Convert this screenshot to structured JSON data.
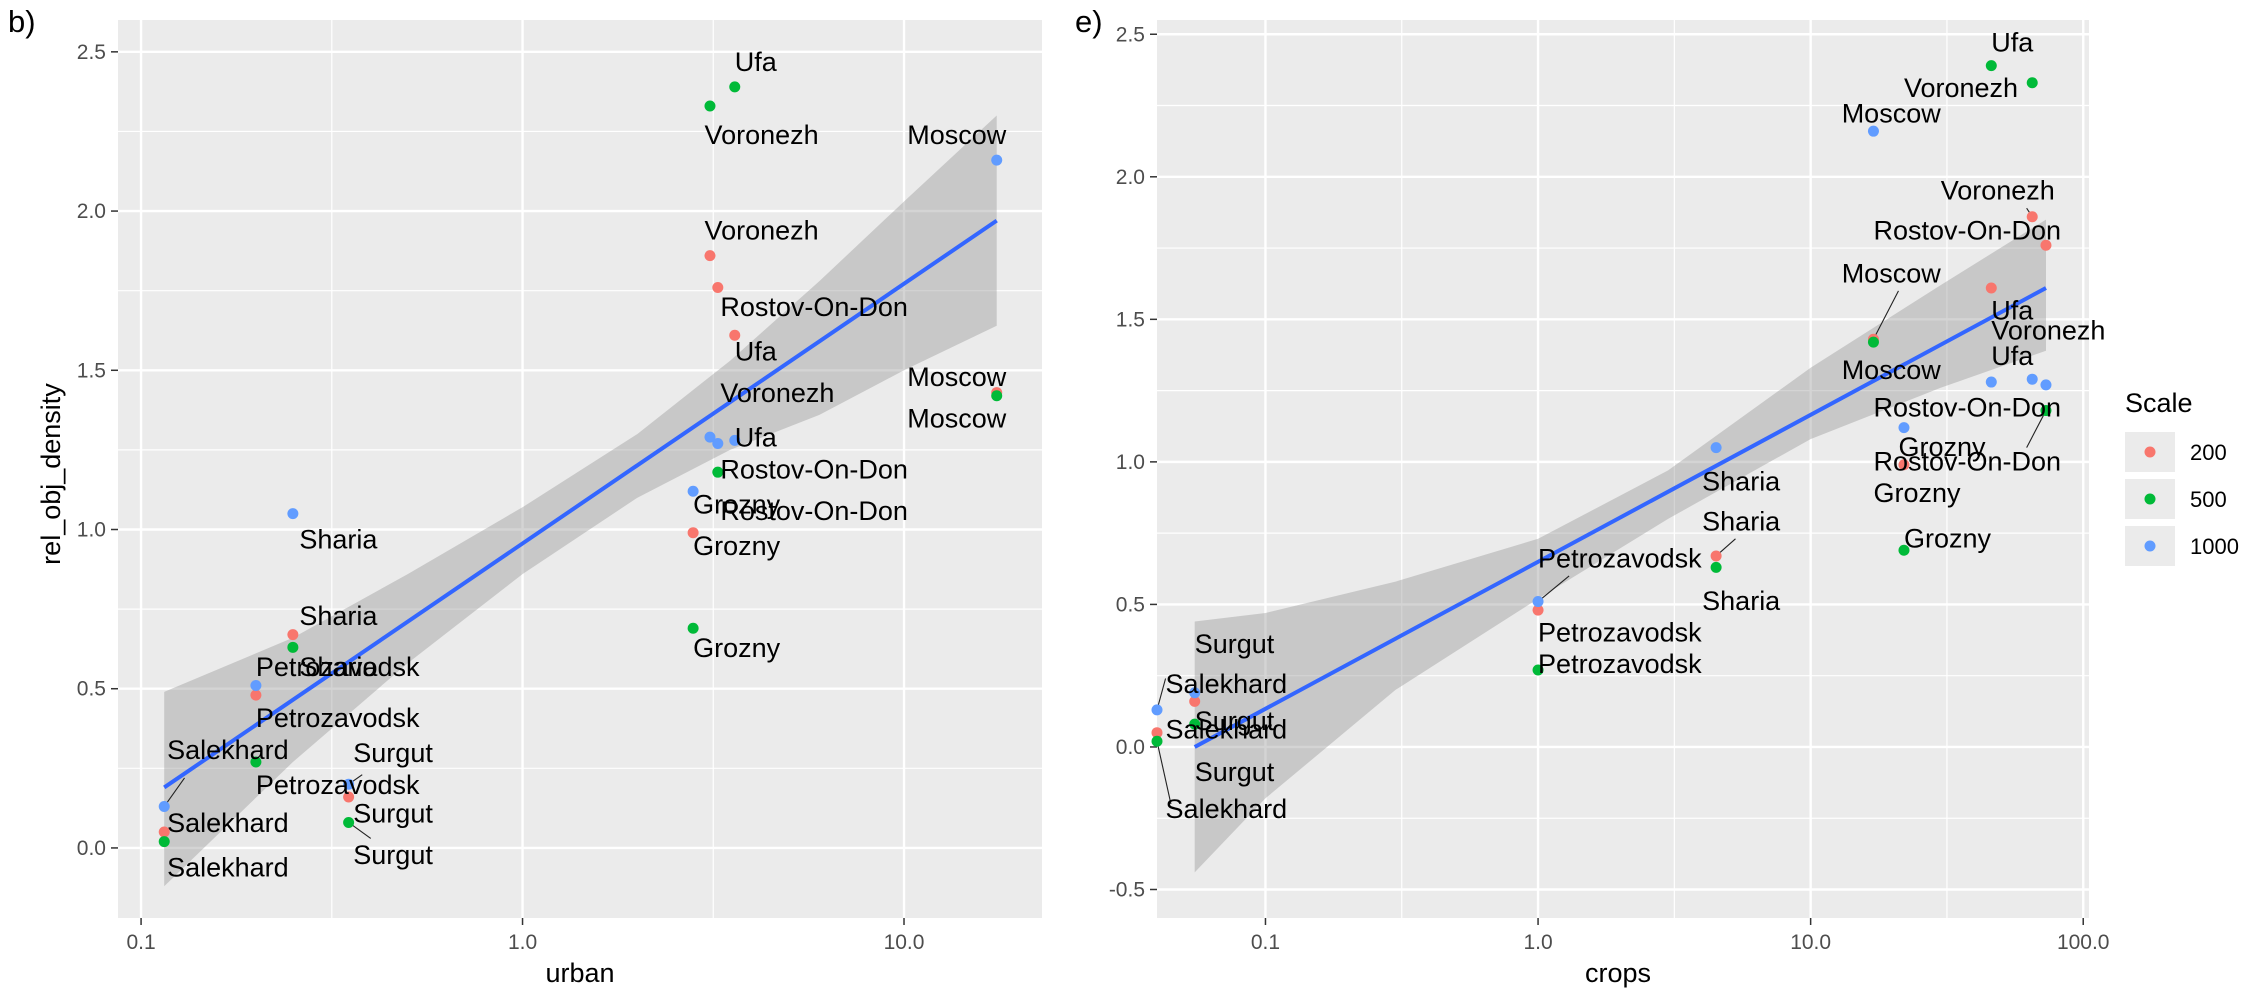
{
  "chart_data": [
    {
      "type": "scatter",
      "panel_label": "b)",
      "xlabel": "urban",
      "ylabel": "rel_obj_density",
      "x_scale": "log10",
      "xlim": [
        0.087,
        23
      ],
      "ylim": [
        -0.22,
        2.6
      ],
      "x_ticks": [
        0.1,
        1,
        10
      ],
      "x_tick_labels": [
        "0.1",
        "1.0",
        "10.0"
      ],
      "y_ticks": [
        0,
        0.5,
        1,
        1.5,
        2,
        2.5
      ],
      "y_tick_labels": [
        "0.0",
        "0.5",
        "1.0",
        "1.5",
        "2.0",
        "2.5"
      ],
      "grid": true,
      "trend_line": {
        "x": [
          0.115,
          17.5
        ],
        "y": [
          0.19,
          1.97
        ]
      },
      "confidence_band": {
        "x": [
          0.115,
          0.25,
          0.5,
          1.0,
          2.0,
          3.5,
          6.0,
          10.0,
          17.5
        ],
        "lower": [
          -0.12,
          0.27,
          0.58,
          0.86,
          1.1,
          1.25,
          1.36,
          1.5,
          1.64
        ],
        "upper": [
          0.49,
          0.66,
          0.86,
          1.07,
          1.3,
          1.53,
          1.78,
          2.03,
          2.3
        ]
      },
      "series": [
        {
          "name": "200",
          "color": "#F8766D",
          "points": [
            {
              "x": 3.1,
              "y": 1.86,
              "label": "Voronezh"
            },
            {
              "x": 3.25,
              "y": 1.76,
              "label": ""
            },
            {
              "x": 3.6,
              "y": 1.61,
              "label": "Rostov-On-Don"
            },
            {
              "x": 2.8,
              "y": 0.99,
              "label": "Grozny"
            },
            {
              "x": 0.25,
              "y": 0.67,
              "label": "Sharia"
            },
            {
              "x": 0.2,
              "y": 0.48,
              "label": "Petrozavodsk"
            },
            {
              "x": 0.35,
              "y": 0.16,
              "label": "Surgut"
            },
            {
              "x": 0.115,
              "y": 0.05,
              "label": "Salekhard"
            },
            {
              "x": 17.5,
              "y": 1.43,
              "label": "Moscow"
            }
          ]
        },
        {
          "name": "500",
          "color": "#00BA38",
          "points": [
            {
              "x": 3.6,
              "y": 2.39,
              "label": "Ufa"
            },
            {
              "x": 3.1,
              "y": 2.33,
              "label": "Voronezh"
            },
            {
              "x": 17.5,
              "y": 1.42,
              "label": "Moscow"
            },
            {
              "x": 3.25,
              "y": 1.18,
              "label": "Rostov-On-Don"
            },
            {
              "x": 2.8,
              "y": 0.69,
              "label": "Grozny"
            },
            {
              "x": 0.25,
              "y": 0.63,
              "label": ""
            },
            {
              "x": 0.2,
              "y": 0.27,
              "label": "Petrozavodsk"
            },
            {
              "x": 0.35,
              "y": 0.08,
              "label": "Surgut"
            },
            {
              "x": 0.115,
              "y": 0.02,
              "label": "Salekhard"
            }
          ]
        },
        {
          "name": "1000",
          "color": "#619CFF",
          "points": [
            {
              "x": 17.5,
              "y": 2.16,
              "label": "Moscow"
            },
            {
              "x": 3.1,
              "y": 1.29,
              "label": "Voronezh"
            },
            {
              "x": 3.6,
              "y": 1.28,
              "label": "Ufa"
            },
            {
              "x": 3.25,
              "y": 1.27,
              "label": ""
            },
            {
              "x": 2.8,
              "y": 1.12,
              "label": "Rostov-On-Don"
            },
            {
              "x": 0.25,
              "y": 1.05,
              "label": "Sharia"
            },
            {
              "x": 0.2,
              "y": 0.51,
              "label": "Sharia"
            },
            {
              "x": 0.35,
              "y": 0.2,
              "label": ""
            },
            {
              "x": 0.115,
              "y": 0.13,
              "label": "Salekhard"
            }
          ]
        }
      ],
      "labels": [
        {
          "text": "Ufa",
          "x": 3.6,
          "y": 2.44
        },
        {
          "text": "Voronezh",
          "x": 3.0,
          "y": 2.21
        },
        {
          "text": "Moscow",
          "x": 10.2,
          "y": 2.21
        },
        {
          "text": "Voronezh",
          "x": 3.0,
          "y": 1.91
        },
        {
          "text": "Rostov-On-Don",
          "x": 3.3,
          "y": 1.67
        },
        {
          "text": "Ufa",
          "x": 3.6,
          "y": 1.53
        },
        {
          "text": "Voronezh",
          "x": 3.3,
          "y": 1.4
        },
        {
          "text": "Ufa",
          "x": 3.6,
          "y": 1.26
        },
        {
          "text": "Moscow",
          "x": 10.2,
          "y": 1.45
        },
        {
          "text": "Moscow",
          "x": 10.2,
          "y": 1.32
        },
        {
          "text": "Rostov-On-Don",
          "x": 3.3,
          "y": 1.16
        },
        {
          "text": "Rostov-On-Don",
          "x": 3.3,
          "y": 1.03
        },
        {
          "text": "Grozny",
          "x": 2.8,
          "y": 1.05
        },
        {
          "text": "Grozny",
          "x": 2.8,
          "y": 0.92
        },
        {
          "text": "Grozny",
          "x": 2.8,
          "y": 0.6
        },
        {
          "text": "Sharia",
          "x": 0.26,
          "y": 0.94
        },
        {
          "text": "Sharia",
          "x": 0.26,
          "y": 0.7
        },
        {
          "text": "Petrozavodsk",
          "x": 0.2,
          "y": 0.54
        },
        {
          "text": "Sharia",
          "x": 0.26,
          "y": 0.54
        },
        {
          "text": "Petrozavodsk",
          "x": 0.2,
          "y": 0.38
        },
        {
          "text": "Salekhard",
          "x": 0.117,
          "y": 0.28
        },
        {
          "text": "Surgut",
          "x": 0.36,
          "y": 0.27
        },
        {
          "text": "Petrozavodsk",
          "x": 0.2,
          "y": 0.17
        },
        {
          "text": "Surgut",
          "x": 0.36,
          "y": 0.08
        },
        {
          "text": "Salekhard",
          "x": 0.117,
          "y": 0.05
        },
        {
          "text": "Surgut",
          "x": 0.36,
          "y": -0.05
        },
        {
          "text": "Salekhard",
          "x": 0.117,
          "y": -0.09
        }
      ],
      "leaders": [
        {
          "x1": 0.115,
          "y1": 0.13,
          "x2": 0.13,
          "y2": 0.22
        },
        {
          "x1": 0.35,
          "y1": 0.2,
          "x2": 0.38,
          "y2": 0.23
        },
        {
          "x1": 0.35,
          "y1": 0.08,
          "x2": 0.4,
          "y2": 0.03
        }
      ]
    },
    {
      "type": "scatter",
      "panel_label": "e)",
      "xlabel": "crops",
      "ylabel": "",
      "x_scale": "log10",
      "xlim": [
        0.04,
        105
      ],
      "ylim": [
        -0.6,
        2.55
      ],
      "x_ticks": [
        0.1,
        1,
        10,
        100
      ],
      "x_tick_labels": [
        "0.1",
        "1.0",
        "10.0",
        "100.0"
      ],
      "y_ticks": [
        -0.5,
        0,
        0.5,
        1,
        1.5,
        2,
        2.5
      ],
      "y_tick_labels": [
        "-0.5",
        "0.0",
        "0.5",
        "1.0",
        "1.5",
        "2.0",
        "2.5"
      ],
      "grid": true,
      "trend_line": {
        "x": [
          0.055,
          73
        ],
        "y": [
          0.0,
          1.61
        ]
      },
      "confidence_band": {
        "x": [
          0.055,
          0.1,
          0.3,
          1.0,
          3.0,
          10.0,
          30.0,
          73.0
        ],
        "lower": [
          -0.44,
          -0.18,
          0.2,
          0.52,
          0.8,
          1.08,
          1.26,
          1.39
        ],
        "upper": [
          0.44,
          0.47,
          0.58,
          0.73,
          0.97,
          1.33,
          1.62,
          1.85
        ]
      },
      "series": [
        {
          "name": "200",
          "color": "#F8766D",
          "points": [
            {
              "x": 65,
              "y": 1.86,
              "label": "Voronezh"
            },
            {
              "x": 73,
              "y": 1.76,
              "label": "Rostov-On-Don"
            },
            {
              "x": 46,
              "y": 1.61,
              "label": ""
            },
            {
              "x": 17,
              "y": 1.43,
              "label": "Moscow"
            },
            {
              "x": 22,
              "y": 0.99,
              "label": "Grozny"
            },
            {
              "x": 4.5,
              "y": 0.67,
              "label": "Sharia"
            },
            {
              "x": 1.0,
              "y": 0.48,
              "label": "Petrozavodsk"
            },
            {
              "x": 0.055,
              "y": 0.16,
              "label": "Surgut"
            },
            {
              "x": 0.04,
              "y": 0.05,
              "label": "Salekhard"
            }
          ]
        },
        {
          "name": "500",
          "color": "#00BA38",
          "points": [
            {
              "x": 46,
              "y": 2.39,
              "label": "Ufa"
            },
            {
              "x": 65,
              "y": 2.33,
              "label": "Voronezh"
            },
            {
              "x": 17,
              "y": 1.42,
              "label": "Moscow"
            },
            {
              "x": 73,
              "y": 1.18,
              "label": "Rostov-On-Don"
            },
            {
              "x": 22,
              "y": 0.69,
              "label": "Grozny"
            },
            {
              "x": 4.5,
              "y": 0.63,
              "label": "Sharia"
            },
            {
              "x": 1.0,
              "y": 0.27,
              "label": "Petrozavodsk"
            },
            {
              "x": 0.055,
              "y": 0.08,
              "label": "Surgut"
            },
            {
              "x": 0.04,
              "y": 0.02,
              "label": "Salekhard"
            }
          ]
        },
        {
          "name": "1000",
          "color": "#619CFF",
          "points": [
            {
              "x": 17,
              "y": 2.16,
              "label": "Moscow"
            },
            {
              "x": 65,
              "y": 1.29,
              "label": "Voronezh"
            },
            {
              "x": 46,
              "y": 1.28,
              "label": "Ufa"
            },
            {
              "x": 73,
              "y": 1.27,
              "label": ""
            },
            {
              "x": 22,
              "y": 1.12,
              "label": "Rostov-On-Don"
            },
            {
              "x": 4.5,
              "y": 1.05,
              "label": "Sharia"
            },
            {
              "x": 1.0,
              "y": 0.51,
              "label": "Petrozavodsk"
            },
            {
              "x": 0.055,
              "y": 0.19,
              "label": "Surgut"
            },
            {
              "x": 0.04,
              "y": 0.13,
              "label": "Salekhard"
            }
          ]
        }
      ],
      "labels": [
        {
          "text": "Ufa",
          "x": 46,
          "y": 2.44
        },
        {
          "text": "Voronezh",
          "x": 22,
          "y": 2.28
        },
        {
          "text": "Moscow",
          "x": 13,
          "y": 2.19
        },
        {
          "text": "Voronezh",
          "x": 30,
          "y": 1.92
        },
        {
          "text": "Rostov-On-Don",
          "x": 17,
          "y": 1.78
        },
        {
          "text": "Moscow",
          "x": 13,
          "y": 1.63
        },
        {
          "text": "Ufa",
          "x": 46,
          "y": 1.5
        },
        {
          "text": "Voronezh",
          "x": 46,
          "y": 1.43
        },
        {
          "text": "Moscow",
          "x": 13,
          "y": 1.29
        },
        {
          "text": "Ufa",
          "x": 46,
          "y": 1.34
        },
        {
          "text": "Rostov-On-Don",
          "x": 17,
          "y": 1.16
        },
        {
          "text": "Grozny",
          "x": 21,
          "y": 1.02
        },
        {
          "text": "Rostov-On-Don",
          "x": 17,
          "y": 0.97
        },
        {
          "text": "Grozny",
          "x": 17,
          "y": 0.86
        },
        {
          "text": "Grozny",
          "x": 22,
          "y": 0.7
        },
        {
          "text": "Sharia",
          "x": 4.0,
          "y": 0.9
        },
        {
          "text": "Sharia",
          "x": 4.0,
          "y": 0.76
        },
        {
          "text": "Petrozavodsk",
          "x": 1.0,
          "y": 0.63
        },
        {
          "text": "Sharia",
          "x": 4.0,
          "y": 0.48
        },
        {
          "text": "Petrozavodsk",
          "x": 1.0,
          "y": 0.37
        },
        {
          "text": "Petrozavodsk",
          "x": 1.0,
          "y": 0.26
        },
        {
          "text": "Surgut",
          "x": 0.055,
          "y": 0.33
        },
        {
          "text": "Salekhard",
          "x": 0.043,
          "y": 0.19
        },
        {
          "text": "Surgut",
          "x": 0.055,
          "y": 0.06
        },
        {
          "text": "Salekhard",
          "x": 0.043,
          "y": 0.03
        },
        {
          "text": "Surgut",
          "x": 0.055,
          "y": -0.12
        },
        {
          "text": "Salekhard",
          "x": 0.043,
          "y": -0.25
        }
      ],
      "leaders": [
        {
          "x1": 17,
          "y1": 1.43,
          "x2": 21,
          "y2": 1.6
        },
        {
          "x1": 73,
          "y1": 1.18,
          "x2": 62,
          "y2": 1.05
        },
        {
          "x1": 65,
          "y1": 1.86,
          "x2": 62,
          "y2": 1.89
        },
        {
          "x1": 4.5,
          "y1": 0.67,
          "x2": 5.3,
          "y2": 0.73
        },
        {
          "x1": 1.0,
          "y1": 0.51,
          "x2": 1.3,
          "y2": 0.6
        },
        {
          "x1": 0.04,
          "y1": 0.13,
          "x2": 0.043,
          "y2": 0.24
        },
        {
          "x1": 0.04,
          "y1": 0.02,
          "x2": 0.045,
          "y2": -0.2
        }
      ]
    }
  ],
  "legend": {
    "title": "Scale",
    "position": "right",
    "items": [
      {
        "label": "200",
        "color": "#F8766D"
      },
      {
        "label": "500",
        "color": "#00BA38"
      },
      {
        "label": "1000",
        "color": "#619CFF"
      }
    ]
  }
}
